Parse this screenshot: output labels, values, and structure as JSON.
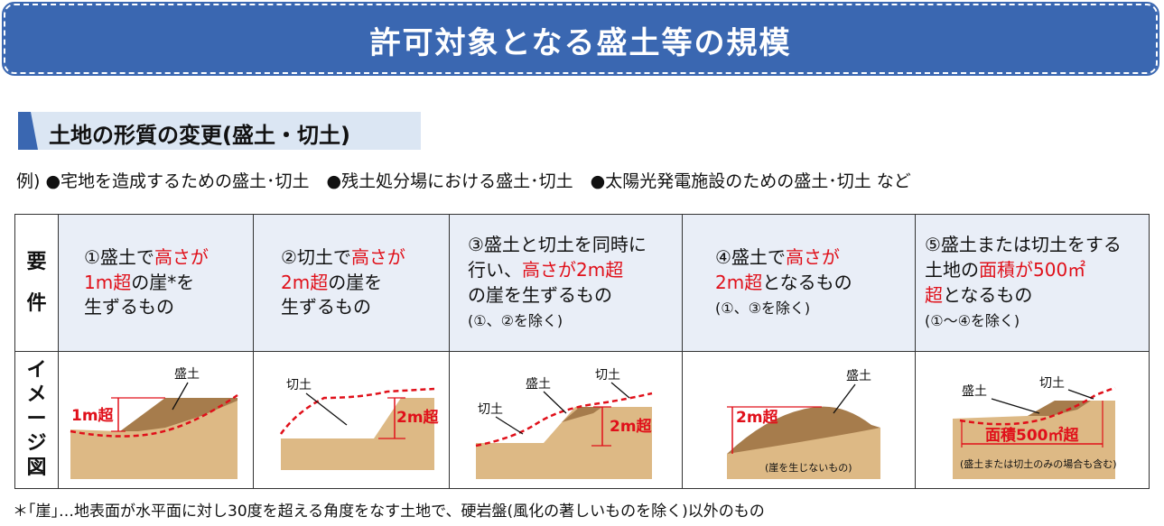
{
  "banner": {
    "title": "許可対象となる盛土等の規模"
  },
  "section": {
    "heading": "土地の形質の変更(盛土・切土)"
  },
  "examples": "例) ●宅地を造成するための盛土･切土　●残土処分場における盛土･切土　●太陽光発電施設のための盛土･切土 など",
  "table": {
    "label_requirement": [
      "要",
      "件"
    ],
    "label_image": [
      "イ",
      "メ",
      "ー",
      "ジ",
      "図"
    ],
    "cells": [
      {
        "lines": [
          [
            {
              "t": "①盛土で"
            },
            {
              "t": "高さが",
              "r": true
            }
          ],
          [
            {
              "t": "1m超",
              "r": true
            },
            {
              "t": "の崖*を"
            }
          ],
          [
            {
              "t": "生ずるもの"
            }
          ]
        ]
      },
      {
        "lines": [
          [
            {
              "t": "②切土で"
            },
            {
              "t": "高さが",
              "r": true
            }
          ],
          [
            {
              "t": "2m超",
              "r": true
            },
            {
              "t": "の崖を"
            }
          ],
          [
            {
              "t": "生ずるもの"
            }
          ]
        ]
      },
      {
        "lines": [
          [
            {
              "t": "③盛土と切土を同時に"
            }
          ],
          [
            {
              "t": "行い、"
            },
            {
              "t": "高さが2m超",
              "r": true
            }
          ],
          [
            {
              "t": "の崖を生ずるもの"
            }
          ],
          [
            {
              "t": "(①、②を除く)",
              "s": true
            }
          ]
        ]
      },
      {
        "lines": [
          [
            {
              "t": "④盛土で"
            },
            {
              "t": "高さが",
              "r": true
            }
          ],
          [
            {
              "t": "2m超",
              "r": true
            },
            {
              "t": "となるもの"
            }
          ],
          [
            {
              "t": "(①、③を除く)",
              "s": true
            }
          ]
        ]
      },
      {
        "lines": [
          [
            {
              "t": "⑤盛土または切土をする"
            }
          ],
          [
            {
              "t": "土地の"
            },
            {
              "t": "面積が500㎡",
              "r": true
            }
          ],
          [
            {
              "t": "超",
              "r": true
            },
            {
              "t": "となるもの"
            }
          ],
          [
            {
              "t": "(①～④を除く)",
              "s": true
            }
          ]
        ]
      }
    ]
  },
  "diagrams": {
    "d1": {
      "fill_label": "盛土",
      "height_label": "1m超"
    },
    "d2": {
      "cut_label": "切土",
      "height_label": "2m超"
    },
    "d3": {
      "fill_label": "盛土",
      "cut_label_top": "切土",
      "cut_label_left": "切土",
      "height_label": "2m超"
    },
    "d4": {
      "fill_label": "盛土",
      "height_label": "2m超",
      "caption": "(崖を生じないもの)"
    },
    "d5": {
      "fill_label": "盛土",
      "cut_label": "切土",
      "area_label": "面積500㎡超",
      "caption": "(盛土または切土のみの場合も含む)"
    }
  },
  "colors": {
    "banner": "#3a67b1",
    "soil": "#ddb985",
    "fill": "#a67c4c",
    "accent_red": "#e0101a"
  },
  "footnote": "＊｢崖｣…地表面が水平面に対し30度を超える角度をなす土地で、硬岩盤(風化の著しいものを除く)以外のもの"
}
